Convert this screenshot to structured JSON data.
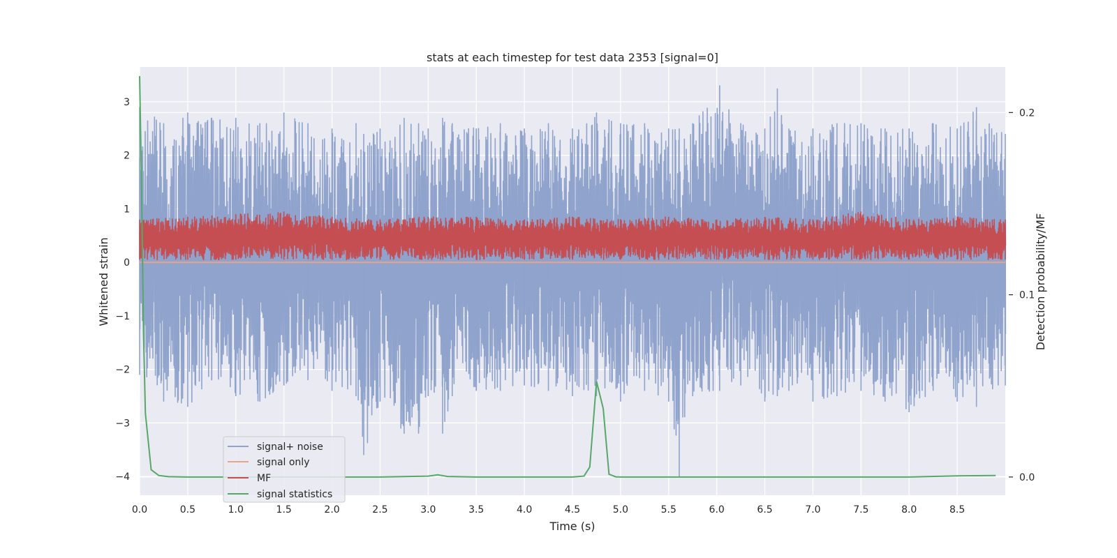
{
  "chart_data": {
    "type": "line",
    "title": "stats at each timestep for test data 2353 [signal=0]",
    "xlabel": "Time (s)",
    "ylabel": "Whitened strain",
    "y2label": "Detection probability/MF",
    "xlim": [
      0.0,
      9.0
    ],
    "ylim": [
      -4.35,
      3.65
    ],
    "y2lim": [
      -0.01,
      0.225
    ],
    "xticks": [
      "0.0",
      "0.5",
      "1.0",
      "1.5",
      "2.0",
      "2.5",
      "3.0",
      "3.5",
      "4.0",
      "4.5",
      "5.0",
      "5.5",
      "6.0",
      "6.5",
      "7.0",
      "7.5",
      "8.0",
      "8.5"
    ],
    "yticks": [
      "3",
      "2",
      "1",
      "0",
      "−1",
      "−2",
      "−3",
      "−4"
    ],
    "y2ticks": [
      "0.2",
      "0.1",
      "0.0"
    ],
    "grid": true,
    "legend_position": "lower-left",
    "series": [
      {
        "name": "signal+ noise",
        "color": "#8fa3cc",
        "axis": "left",
        "x": [
          0.0,
          0.25,
          0.5,
          0.75,
          1.0,
          1.25,
          1.5,
          1.75,
          2.0,
          2.25,
          2.33,
          2.5,
          2.75,
          2.9,
          3.0,
          3.15,
          3.25,
          3.5,
          3.75,
          4.0,
          4.25,
          4.5,
          4.75,
          5.0,
          5.25,
          5.5,
          5.61,
          5.75,
          6.03,
          6.25,
          6.5,
          6.63,
          6.75,
          7.0,
          7.25,
          7.5,
          7.75,
          8.0,
          8.25,
          8.5,
          8.7,
          9.0
        ],
        "y_max": [
          2.9,
          2.6,
          2.8,
          2.7,
          2.7,
          2.6,
          2.8,
          2.6,
          2.5,
          2.6,
          2.4,
          2.5,
          2.7,
          2.6,
          2.5,
          2.7,
          2.6,
          2.5,
          2.6,
          2.5,
          2.6,
          2.5,
          2.8,
          2.6,
          2.6,
          2.5,
          2.5,
          2.6,
          3.3,
          2.6,
          2.5,
          3.25,
          2.5,
          2.5,
          2.6,
          2.6,
          2.5,
          2.5,
          2.6,
          2.5,
          2.9,
          2.4
        ],
        "y_min": [
          -2.1,
          -2.6,
          -2.7,
          -2.2,
          -2.5,
          -2.6,
          -2.3,
          -2.2,
          -2.4,
          -2.5,
          -3.6,
          -2.6,
          -3.2,
          -3.2,
          -2.5,
          -3.2,
          -2.5,
          -2.4,
          -2.4,
          -2.3,
          -2.4,
          -2.5,
          -2.5,
          -2.6,
          -2.4,
          -2.6,
          -4.0,
          -2.5,
          -2.4,
          -2.3,
          -2.6,
          -2.5,
          -2.4,
          -2.6,
          -2.5,
          -2.4,
          -2.6,
          -2.8,
          -2.4,
          -2.6,
          -2.7,
          -2.3
        ]
      },
      {
        "name": "signal only",
        "color": "#e8a48a",
        "axis": "left",
        "x": [
          0.0,
          9.0
        ],
        "y": [
          0.0,
          0.0
        ]
      },
      {
        "name": "MF",
        "color": "#c44e52",
        "axis": "left",
        "x": [
          0.0,
          0.5,
          1.0,
          1.5,
          2.0,
          2.5,
          3.0,
          3.5,
          4.0,
          4.5,
          5.0,
          5.5,
          6.0,
          6.5,
          7.0,
          7.5,
          8.0,
          8.5,
          9.0
        ],
        "y_max": [
          0.8,
          0.85,
          0.9,
          0.95,
          0.85,
          0.8,
          0.85,
          0.85,
          0.8,
          0.85,
          0.8,
          0.85,
          0.8,
          0.85,
          0.8,
          0.95,
          0.8,
          0.85,
          0.8
        ],
        "y_min": [
          0.05,
          0.05,
          0.05,
          0.05,
          0.05,
          0.05,
          0.05,
          0.05,
          0.05,
          0.05,
          0.05,
          0.05,
          0.05,
          0.05,
          0.05,
          0.05,
          0.05,
          0.05,
          0.05
        ]
      },
      {
        "name": "signal statistics",
        "color": "#55a868",
        "axis": "right",
        "x": [
          0.0,
          0.02,
          0.04,
          0.06,
          0.12,
          0.2,
          0.3,
          0.5,
          1.0,
          2.0,
          2.5,
          3.0,
          3.1,
          3.2,
          3.5,
          4.0,
          4.5,
          4.62,
          4.68,
          4.75,
          4.82,
          4.88,
          4.95,
          5.0,
          6.0,
          7.0,
          8.0,
          8.5,
          8.9
        ],
        "y": [
          0.22,
          0.16,
          0.08,
          0.035,
          0.004,
          0.0008,
          0.0002,
          0.0,
          0.0,
          0.0,
          0.0,
          0.0005,
          0.0012,
          0.0003,
          0.0,
          0.0,
          0.0,
          0.0005,
          0.0055,
          0.0525,
          0.0375,
          0.0015,
          0.0001,
          0.0,
          0.0,
          0.0,
          0.0,
          0.0006,
          0.0008
        ]
      }
    ]
  }
}
